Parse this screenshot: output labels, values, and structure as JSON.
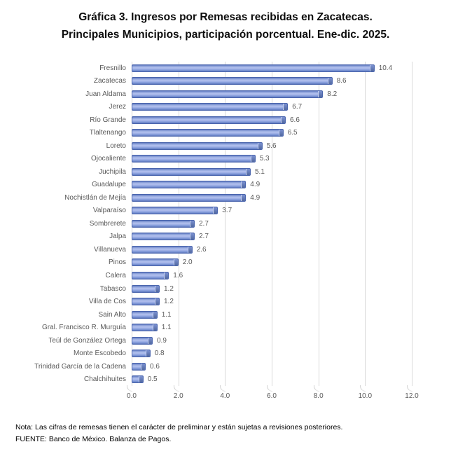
{
  "title": {
    "line1": "Gráfica 3. Ingresos por Remesas recibidas en Zacatecas.",
    "line2": "Principales Municipios, participación porcentual. Ene-dic. 2025."
  },
  "chart_data": {
    "type": "bar",
    "orientation": "horizontal",
    "title": "Gráfica 3. Ingresos por Remesas recibidas en Zacatecas. Principales Municipios, participación porcentual. Ene-dic. 2025.",
    "categories": [
      "Fresnillo",
      "Zacatecas",
      "Juan Aldama",
      "Jerez",
      "Río Grande",
      "Tlaltenango",
      "Loreto",
      "Ojocaliente",
      "Juchipila",
      "Guadalupe",
      "Nochistlán de Mejía",
      "Valparaíso",
      "Sombrerete",
      "Jalpa",
      "Villanueva",
      "Pinos",
      "Calera",
      "Tabasco",
      "Villa de Cos",
      "Sain Alto",
      "Gral. Francisco R. Murguía",
      "Teúl de González Ortega",
      "Monte Escobedo",
      "Trinidad García de la Cadena",
      "Chalchihuites"
    ],
    "values": [
      10.4,
      8.6,
      8.2,
      6.7,
      6.6,
      6.5,
      5.6,
      5.3,
      5.1,
      4.9,
      4.9,
      3.7,
      2.7,
      2.7,
      2.6,
      2.0,
      1.6,
      1.2,
      1.2,
      1.1,
      1.1,
      0.9,
      0.8,
      0.6,
      0.5
    ],
    "value_labels": [
      "10.4",
      "8.6",
      "8.2",
      "6.7",
      "6.6",
      "6.5",
      "5.6",
      "5.3",
      "5.1",
      "4.9",
      "4.9",
      "3.7",
      "2.7",
      "2.7",
      "2.6",
      "2.0",
      "1.6",
      "1.2",
      "1.2",
      "1.1",
      "1.1",
      "0.9",
      "0.8",
      "0.6",
      "0.5"
    ],
    "xlim": [
      0,
      12
    ],
    "x_ticks": [
      "0.0",
      "2.0",
      "4.0",
      "6.0",
      "8.0",
      "10.0",
      "12.0"
    ],
    "x_tick_values": [
      0,
      2,
      4,
      6,
      8,
      10,
      12
    ],
    "grid": "vertical",
    "legend": "none",
    "bar_fill_color": "#93a7dd",
    "bar_border_color": "#4a65ad",
    "gridline_color": "#d9d9d9",
    "axis_label_color": "#595959"
  },
  "footer": {
    "note": "Nota: Las cifras de remesas tienen el carácter de preliminar y están sujetas a revisiones posteriores.",
    "source": "FUENTE: Banco de México. Balanza de Pagos."
  }
}
